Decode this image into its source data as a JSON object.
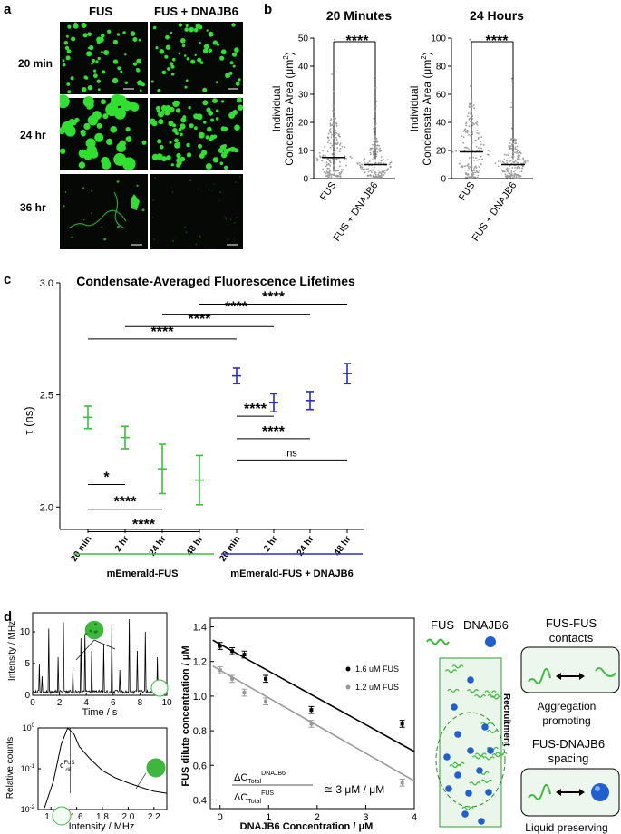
{
  "panel_letters": {
    "a": "a",
    "b": "b",
    "c": "c",
    "d": "d"
  },
  "panel_a": {
    "columns": [
      "FUS",
      "FUS + DNAJB6"
    ],
    "rows": [
      "20 min",
      "24 hr",
      "36 hr"
    ],
    "colors": {
      "condensate": "#2fe02f",
      "background": "#050805"
    }
  },
  "panel_b": {
    "subtitles": [
      "20 Minutes",
      "24 Hours"
    ],
    "ylabel_line1": "Individual",
    "ylabel_line2": "Condensate Area (μm",
    "ylabel_sup": "2",
    "ylabel_close": ")",
    "sig": "****",
    "categories": [
      "FUS",
      "FUS + DNAJB6"
    ]
  },
  "panel_c": {
    "title": "Condensate-Averaged Fluorescence Lifetimes",
    "ylabel": "τ (ns)",
    "group_labels": [
      "mEmerald-FUS",
      "mEmerald-FUS + DNAJB6"
    ],
    "sig_labels": [
      "****",
      "****",
      "****",
      "****",
      "****",
      "****",
      "*",
      "****",
      "****",
      "ns"
    ],
    "colors": {
      "fus": "#3cbf3c",
      "dnajb6": "#2a2acf"
    }
  },
  "panel_d": {
    "trace_xlabel": "Time / s",
    "trace_ylabel": "Intensity / MHz",
    "hist_xlabel": "Intensity / MHz",
    "hist_ylabel": "Relative counts",
    "hist_annot_c": "c",
    "hist_annot_sup": "FUS",
    "hist_annot_sub": "dil",
    "scatter_xlabel": "DNAJB6 Concentration / μM",
    "scatter_ylabel": "FUS dilute concentration / μM",
    "legend": [
      "1.6 uM FUS",
      "1.2 uM FUS"
    ],
    "ratio_num_main": "ΔC",
    "ratio_num_sub": "Total",
    "ratio_num_sup": "DNAJB6",
    "ratio_den_main": "ΔC",
    "ratio_den_sub": "Total",
    "ratio_den_sup": "FUS",
    "ratio_value": "≅  3 μM / μM",
    "schematic_fus": "FUS",
    "schematic_dnajb6": "DNAJB6",
    "schematic_side": "Recruitment",
    "box1_title_line1": "FUS-FUS",
    "box1_title_line2": "contacts",
    "box1_caption_line1": "Aggregation",
    "box1_caption_line2": "promoting",
    "box2_title_line1": "FUS-DNAJB6",
    "box2_title_line2": "spacing",
    "box2_caption": "Liquid preserving"
  },
  "chart_data": [
    {
      "type": "scatter",
      "title": "20 Minutes",
      "ylabel": "Individual Condensate Area (μm2)",
      "categories": [
        "FUS",
        "FUS + DNAJB6"
      ],
      "medians": [
        7.5,
        5
      ],
      "ylim": [
        0,
        50
      ],
      "yticks": [
        0,
        10,
        20,
        30,
        40,
        50
      ],
      "significance": "****"
    },
    {
      "type": "scatter",
      "title": "24 Hours",
      "ylabel": "Individual Condensate Area (μm2)",
      "categories": [
        "FUS",
        "FUS + DNAJB6"
      ],
      "medians": [
        19,
        10
      ],
      "ylim": [
        0,
        100
      ],
      "yticks": [
        0,
        20,
        40,
        60,
        80,
        100
      ],
      "significance": "****"
    },
    {
      "type": "scatter",
      "title": "Condensate-Averaged Fluorescence Lifetimes",
      "ylabel": "τ (ns)",
      "ylim": [
        1.9,
        3.0
      ],
      "yticks": [
        2.0,
        2.5,
        3.0
      ],
      "categories": [
        "20 min",
        "2 hr",
        "24 hr",
        "48 hr",
        "20 min",
        "2 hr",
        "24 hr",
        "48 hr"
      ],
      "series": [
        {
          "name": "mEmerald-FUS",
          "mean": [
            2.4,
            2.31,
            2.17,
            2.12
          ],
          "err": [
            0.05,
            0.05,
            0.11,
            0.11
          ]
        },
        {
          "name": "mEmerald-FUS + DNAJB6",
          "mean": [
            2.585,
            2.465,
            2.475,
            2.595
          ],
          "err": [
            0.035,
            0.04,
            0.04,
            0.045
          ]
        }
      ],
      "brackets": [
        {
          "from": "20 min",
          "to": "20 min (DNAJB6)",
          "label": "****"
        },
        {
          "from": "2 hr",
          "to": "2 hr (DNAJB6)",
          "label": "****"
        },
        {
          "from": "24 hr",
          "to": "24 hr (DNAJB6)",
          "label": "****"
        },
        {
          "from": "48 hr",
          "to": "48 hr (DNAJB6)",
          "label": "****"
        },
        {
          "from": "20 min (DNAJB6)",
          "to": "2 hr (DNAJB6)",
          "label": "****"
        },
        {
          "from": "20 min (DNAJB6)",
          "to": "24 hr (DNAJB6)",
          "label": "****"
        },
        {
          "from": "20 min (DNAJB6)",
          "to": "48 hr (DNAJB6)",
          "label": "ns"
        },
        {
          "from": "20 min",
          "to": "2 hr",
          "label": "*"
        },
        {
          "from": "20 min",
          "to": "24 hr",
          "label": "****"
        },
        {
          "from": "20 min",
          "to": "48 hr",
          "label": "****"
        }
      ]
    },
    {
      "type": "line",
      "xlabel": "Time / s",
      "ylabel": "Intensity / MHz",
      "xlim": [
        0,
        10
      ],
      "ylim": [
        0,
        13
      ],
      "xticks": [
        0,
        2,
        4,
        6,
        8,
        10
      ],
      "yticks": [
        0,
        5,
        10
      ]
    },
    {
      "type": "line",
      "xlabel": "Intensity / MHz",
      "ylabel": "Relative counts",
      "y_scale": "log",
      "xlim": [
        1.3,
        2.3
      ],
      "ylim": [
        0.01,
        1
      ],
      "xticks": [
        1.4,
        1.6,
        1.8,
        2.0,
        2.2
      ],
      "x": [
        1.35,
        1.42,
        1.48,
        1.53,
        1.58,
        1.62,
        1.7,
        1.8,
        1.9,
        2.0,
        2.1,
        2.2,
        2.3
      ],
      "values": [
        0.011,
        0.05,
        0.4,
        1.0,
        0.7,
        0.35,
        0.18,
        0.09,
        0.06,
        0.045,
        0.035,
        0.028,
        0.025
      ]
    },
    {
      "type": "scatter",
      "xlabel": "DNAJB6 Concentration / μM",
      "ylabel": "FUS dilute concentration / μM",
      "xlim": [
        -0.2,
        4
      ],
      "ylim": [
        0.35,
        1.45
      ],
      "xticks": [
        0,
        1,
        2,
        3,
        4
      ],
      "yticks": [
        0.4,
        0.6,
        0.8,
        1.0,
        1.2,
        1.4
      ],
      "series": [
        {
          "name": "1.6 uM FUS",
          "x": [
            0,
            0.25,
            0.5,
            0.94,
            1.88,
            3.75
          ],
          "y": [
            1.29,
            1.26,
            1.24,
            1.1,
            0.92,
            0.84
          ],
          "fit": [
            1.3,
            -0.155
          ]
        },
        {
          "name": "1.2 uM FUS",
          "x": [
            0,
            0.25,
            0.5,
            0.94,
            1.88,
            3.75
          ],
          "y": [
            1.15,
            1.1,
            1.02,
            0.97,
            0.84,
            0.5
          ],
          "fit": [
            1.15,
            -0.16
          ]
        }
      ]
    }
  ]
}
